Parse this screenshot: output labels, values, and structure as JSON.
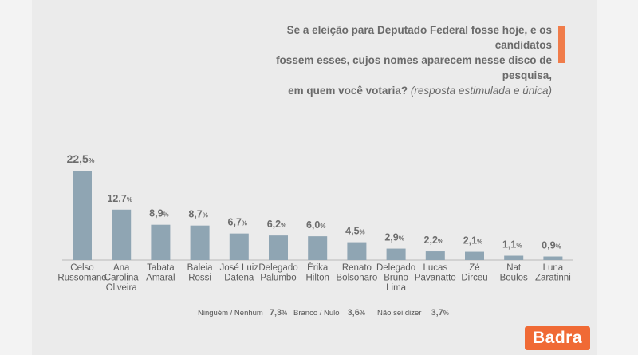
{
  "headline": {
    "lines": [
      "Se a eleição para Deputado Federal fosse hoje, e os candidatos",
      "fossem esses, cujos nomes aparecem nesse disco de pesquisa,",
      "em quem você votaria?"
    ],
    "qualifier": "(resposta estimulada e única)"
  },
  "colors": {
    "bar": "#8fa5b3",
    "accent": "#f07c4a",
    "logo_bg": "#f06a35",
    "value_text": "#6d6d6d",
    "baseline": "#b9b9b9"
  },
  "chart_data": {
    "type": "bar",
    "title": "",
    "unit": "%",
    "categories": [
      [
        "Celso",
        "Russomano"
      ],
      [
        "Ana",
        "Carolina",
        "Oliveira"
      ],
      [
        "Tabata",
        "Amaral"
      ],
      [
        "Baleia",
        "Rossi"
      ],
      [
        "José Luiz",
        "Datena"
      ],
      [
        "Delegado",
        "Palumbo"
      ],
      [
        "Érika",
        "Hilton"
      ],
      [
        "Renato",
        "Bolsonaro"
      ],
      [
        "Delegado",
        "Bruno",
        "Lima"
      ],
      [
        "Lucas",
        "Pavanatto"
      ],
      [
        "Zé",
        "Dirceu"
      ],
      [
        "Nat",
        "Boulos"
      ],
      [
        "Luna",
        "Zaratinni"
      ]
    ],
    "values": [
      22.5,
      12.7,
      8.9,
      8.7,
      6.7,
      6.2,
      6.0,
      4.5,
      2.9,
      2.2,
      2.1,
      1.1,
      0.9
    ],
    "value_labels": [
      "22,5",
      "12,7",
      "8,9",
      "8,7",
      "6,7",
      "6,2",
      "6,0",
      "4,5",
      "2,9",
      "2,2",
      "2,1",
      "1,1",
      "0,9"
    ],
    "ylim": [
      0,
      22.5
    ],
    "grid": false,
    "legend": "none"
  },
  "other_answers": [
    {
      "label": "Ninguém / Nenhum",
      "value": "7,3",
      "unit": "%"
    },
    {
      "label": "Branco / Nulo",
      "value": "3,6",
      "unit": "%"
    },
    {
      "label": "Não sei dizer",
      "value": "3,7",
      "unit": "%"
    }
  ],
  "logo": {
    "text": "Badra"
  }
}
